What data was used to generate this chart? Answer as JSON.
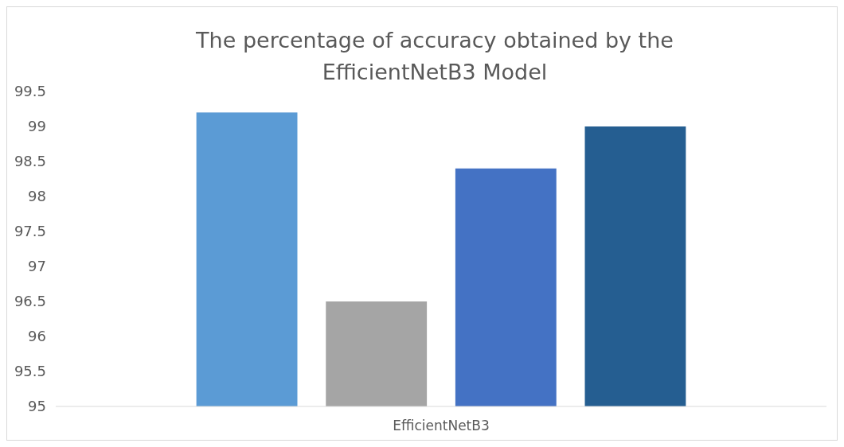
{
  "chart_data": {
    "type": "bar",
    "title": "The percentage of accuracy obtained by the EfficientNetB3 Model",
    "categories": [
      "EfficientNetB3"
    ],
    "series": [
      {
        "color": "#5b9bd5",
        "values": [
          99.2
        ]
      },
      {
        "color": "#a5a5a5",
        "values": [
          96.5
        ]
      },
      {
        "color": "#4472c4",
        "values": [
          98.4
        ]
      },
      {
        "color": "#255e91",
        "values": [
          99.0
        ]
      }
    ],
    "ylim": [
      95,
      99.5
    ],
    "yticks": [
      95,
      95.5,
      96,
      96.5,
      97,
      97.5,
      98,
      98.5,
      99,
      99.5
    ],
    "grid": false
  }
}
